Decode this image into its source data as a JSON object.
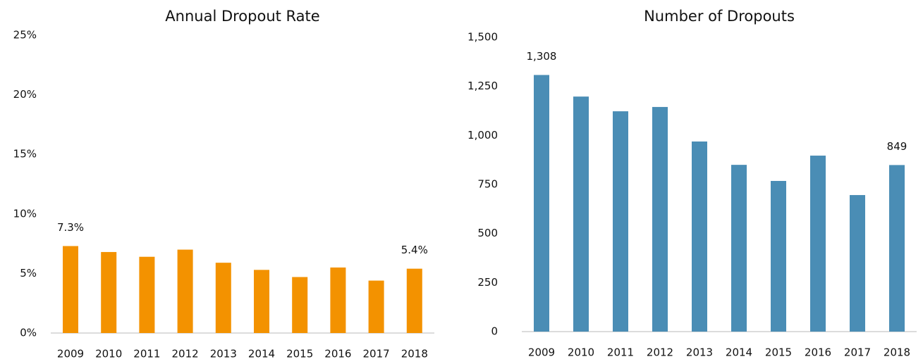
{
  "chart_data": [
    {
      "type": "bar",
      "title": "Annual Dropout Rate",
      "categories": [
        "2009",
        "2010",
        "2011",
        "2012",
        "2013",
        "2014",
        "2015",
        "2016",
        "2017",
        "2018"
      ],
      "values": [
        7.3,
        6.8,
        6.4,
        7.0,
        5.9,
        5.3,
        4.7,
        5.5,
        4.4,
        5.4
      ],
      "value_labels": [
        "7.3%",
        null,
        null,
        null,
        null,
        null,
        null,
        null,
        null,
        "5.4%"
      ],
      "color": "#f39200",
      "ylim": [
        0,
        25
      ],
      "yticks": [
        {
          "value": 0,
          "label": "0%"
        },
        {
          "value": 5,
          "label": "5%"
        },
        {
          "value": 10,
          "label": "10%"
        },
        {
          "value": 15,
          "label": "15%"
        },
        {
          "value": 20,
          "label": "20%"
        },
        {
          "value": 25,
          "label": "25%"
        }
      ],
      "grid": false
    },
    {
      "type": "bar",
      "title": "Number of Dropouts",
      "categories": [
        "2009",
        "2010",
        "2011",
        "2012",
        "2013",
        "2014",
        "2015",
        "2016",
        "2017",
        "2018"
      ],
      "values": [
        1308,
        1198,
        1123,
        1145,
        969,
        850,
        768,
        897,
        696,
        849
      ],
      "value_labels": [
        "1,308",
        null,
        null,
        null,
        null,
        null,
        null,
        null,
        null,
        "849"
      ],
      "color": "#4a8db5",
      "ylim": [
        0,
        1500
      ],
      "yticks": [
        0,
        250,
        500,
        750,
        {
          "value": 1000,
          "label": "1,000"
        },
        {
          "value": 1250,
          "label": "1,250"
        },
        {
          "value": 1500,
          "label": "1,500"
        }
      ],
      "grid": false
    }
  ]
}
